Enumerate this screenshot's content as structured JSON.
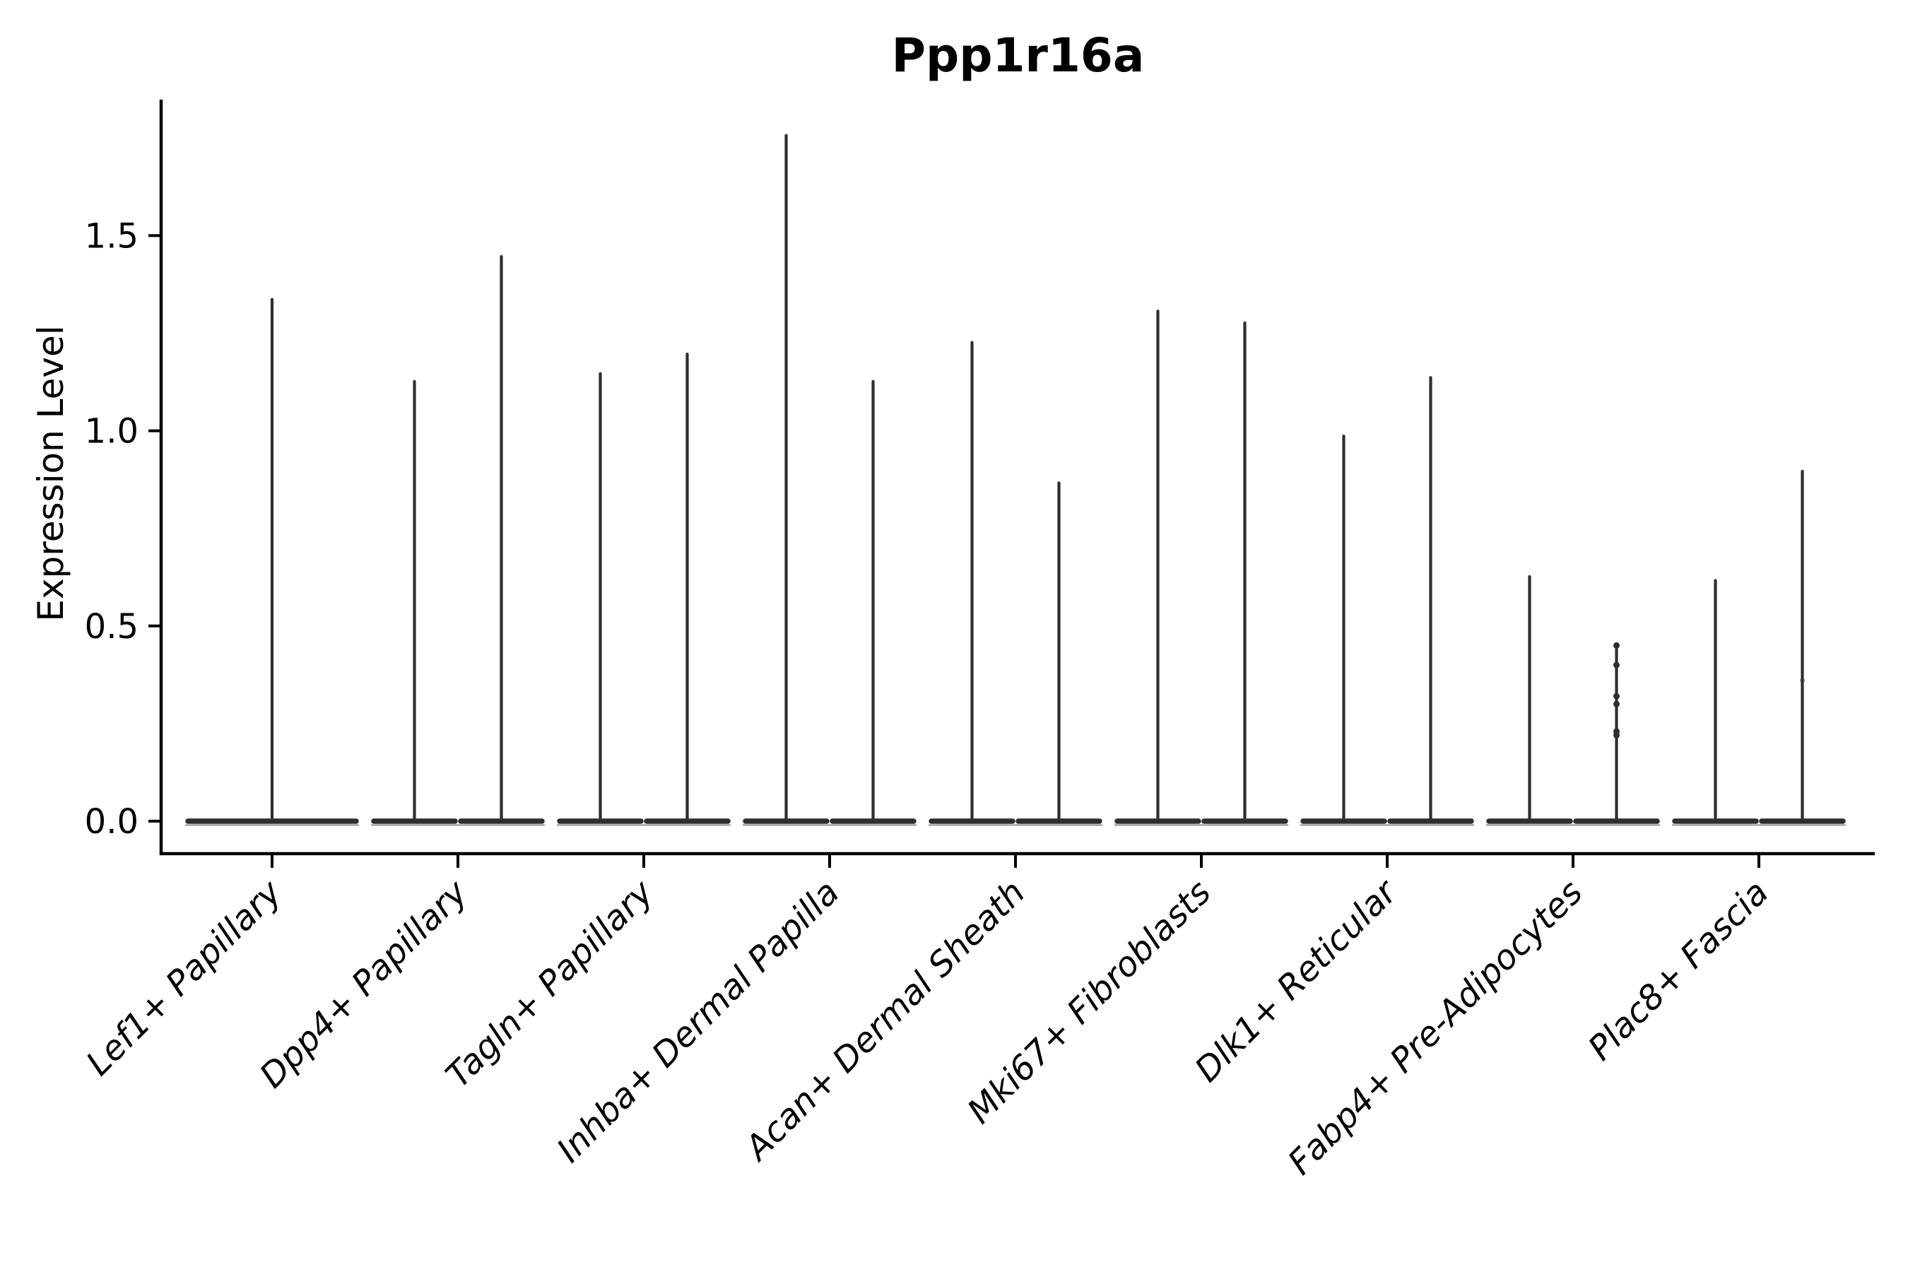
{
  "figure": {
    "background": "#ffffff"
  },
  "chart_data": {
    "type": "violin",
    "title": "Ppp1r16a",
    "ylabel": "Expression Level",
    "xlabel": "",
    "yticks": [
      0.0,
      0.5,
      1.0,
      1.5
    ],
    "ytick_labels": [
      "0.0",
      "0.5",
      "1.0",
      "1.5"
    ],
    "ylim": [
      -0.09,
      1.85
    ],
    "grid": false,
    "legend": "none",
    "x_tick_label_rotation": 45,
    "x_tick_label_style": "italic",
    "colors": {
      "violin": "#2e2e2e",
      "violin_edge_light": "#999999",
      "axis": "#000000",
      "text": "#000000",
      "background": "#ffffff"
    },
    "categories": [
      {
        "label": "Lef1+ Papillary",
        "violins": [
          {
            "max": 1.34
          }
        ]
      },
      {
        "label": "Dpp4+ Papillary",
        "violins": [
          {
            "max": 1.13
          },
          {
            "max": 1.45
          }
        ]
      },
      {
        "label": "Tagln+ Papillary",
        "violins": [
          {
            "max": 1.15
          },
          {
            "max": 1.2
          }
        ]
      },
      {
        "label": "Inhba+ Dermal Papilla",
        "violins": [
          {
            "max": 1.76
          },
          {
            "max": 1.13
          }
        ]
      },
      {
        "label": "Acan+ Dermal Sheath",
        "violins": [
          {
            "max": 1.23
          },
          {
            "max": 0.87
          }
        ]
      },
      {
        "label": "Mki67+ Fibroblasts",
        "violins": [
          {
            "max": 1.31
          },
          {
            "max": 1.28
          }
        ]
      },
      {
        "label": "Dlk1+ Reticular",
        "violins": [
          {
            "max": 0.99
          },
          {
            "max": 1.14
          }
        ]
      },
      {
        "label": "Fabp4+ Pre-Adipocytes",
        "violins": [
          {
            "max": 0.63
          },
          {
            "max": 0.45,
            "points": [
              0.45,
              0.4,
              0.32,
              0.3,
              0.23,
              0.22
            ]
          }
        ]
      },
      {
        "label": "Plac8+ Fascia",
        "violins": [
          {
            "max": 0.62
          },
          {
            "max": 0.9,
            "faint_points": [
              0.36
            ]
          }
        ]
      }
    ],
    "description": "All violins are near-zero-inflated: wide flat base at expression 0 with a thin spike up to the max expression value."
  }
}
